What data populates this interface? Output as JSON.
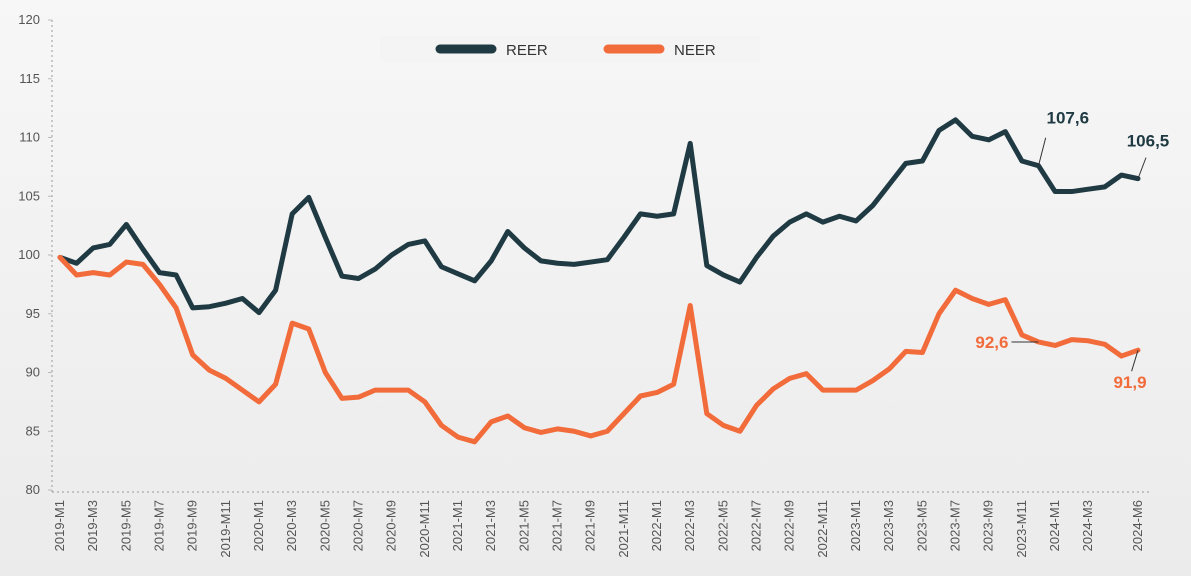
{
  "chart_data": {
    "type": "line",
    "categories": [
      "2019-M1",
      null,
      "2019-M3",
      null,
      "2019-M5",
      null,
      "2019-M7",
      null,
      "2019-M9",
      null,
      "2019-M11",
      null,
      "2020-M1",
      null,
      "2020-M3",
      null,
      "2020-M5",
      null,
      "2020-M7",
      null,
      "2020-M9",
      null,
      "2020-M11",
      null,
      "2021-M1",
      null,
      "2021-M3",
      null,
      "2021-M5",
      null,
      "2021-M7",
      null,
      "2021-M9",
      null,
      "2021-M11",
      null,
      "2022-M1",
      null,
      "2022-M3",
      null,
      "2022-M5",
      null,
      "2022-M7",
      null,
      "2022-M9",
      null,
      "2022-M11",
      null,
      "2023-M1",
      null,
      "2023-M3",
      null,
      "2023-M5",
      null,
      "2023-M7",
      null,
      "2023-M9",
      null,
      "2023-M11",
      null,
      "2024-M1",
      null,
      "2024-M3",
      null,
      null,
      "2024-M6"
    ],
    "series": [
      {
        "name": "REER",
        "color": "#1f3a43",
        "values": [
          99.8,
          99.3,
          100.6,
          100.9,
          102.6,
          100.5,
          98.5,
          98.3,
          95.5,
          95.6,
          95.9,
          96.3,
          95.1,
          97,
          103.5,
          104.9,
          101.5,
          98.2,
          98,
          98.8,
          100,
          100.9,
          101.2,
          99,
          98.4,
          97.8,
          99.5,
          102,
          100.6,
          99.5,
          99.3,
          99.2,
          99.4,
          99.6,
          101.5,
          103.5,
          103.3,
          103.5,
          109.5,
          99.1,
          98.3,
          97.7,
          99.8,
          101.6,
          102.8,
          103.5,
          102.8,
          103.3,
          102.9,
          104.2,
          106,
          107.8,
          108,
          110.6,
          111.5,
          110.1,
          109.8,
          110.5,
          108,
          107.6,
          105.4,
          105.4,
          105.6,
          105.8,
          106.8,
          106.5
        ],
        "value_labels": [
          null,
          null,
          null,
          null,
          null,
          null,
          null,
          null,
          null,
          null,
          null,
          null,
          null,
          null,
          null,
          null,
          null,
          null,
          null,
          null,
          null,
          null,
          null,
          null,
          null,
          null,
          null,
          null,
          null,
          null,
          null,
          null,
          null,
          null,
          null,
          null,
          null,
          null,
          null,
          null,
          null,
          null,
          null,
          null,
          null,
          null,
          null,
          null,
          null,
          null,
          null,
          null,
          null,
          null,
          null,
          null,
          null,
          null,
          null,
          "107,6",
          null,
          null,
          null,
          null,
          null,
          "106,5"
        ]
      },
      {
        "name": "NEER",
        "color": "#f26b3a",
        "values": [
          99.8,
          98.3,
          98.5,
          98.3,
          99.4,
          99.2,
          97.5,
          95.5,
          91.5,
          90.2,
          89.5,
          88.5,
          87.5,
          89,
          94.2,
          93.7,
          90,
          87.8,
          87.9,
          88.5,
          88.5,
          88.5,
          87.5,
          85.5,
          84.5,
          84.1,
          85.8,
          86.3,
          85.3,
          84.9,
          85.2,
          85,
          84.6,
          85,
          86.5,
          88,
          88.3,
          89,
          95.7,
          86.5,
          85.5,
          85,
          87.2,
          88.6,
          89.5,
          89.9,
          88.5,
          88.5,
          88.5,
          89.3,
          90.3,
          91.8,
          91.7,
          95,
          97,
          96.3,
          95.8,
          96.2,
          93.2,
          92.6,
          92.3,
          92.8,
          92.7,
          92.4,
          91.4,
          91.9
        ],
        "value_labels": [
          null,
          null,
          null,
          null,
          null,
          null,
          null,
          null,
          null,
          null,
          null,
          null,
          null,
          null,
          null,
          null,
          null,
          null,
          null,
          null,
          null,
          null,
          null,
          null,
          null,
          null,
          null,
          null,
          null,
          null,
          null,
          null,
          null,
          null,
          null,
          null,
          null,
          null,
          null,
          null,
          null,
          null,
          null,
          null,
          null,
          null,
          null,
          null,
          null,
          null,
          null,
          null,
          null,
          null,
          null,
          null,
          null,
          null,
          null,
          "92,6",
          null,
          null,
          null,
          null,
          null,
          "91,9"
        ]
      }
    ],
    "ylim": [
      80,
      120
    ],
    "yticks": [
      80,
      85,
      90,
      95,
      100,
      105,
      110,
      115,
      120
    ],
    "grid": false
  }
}
